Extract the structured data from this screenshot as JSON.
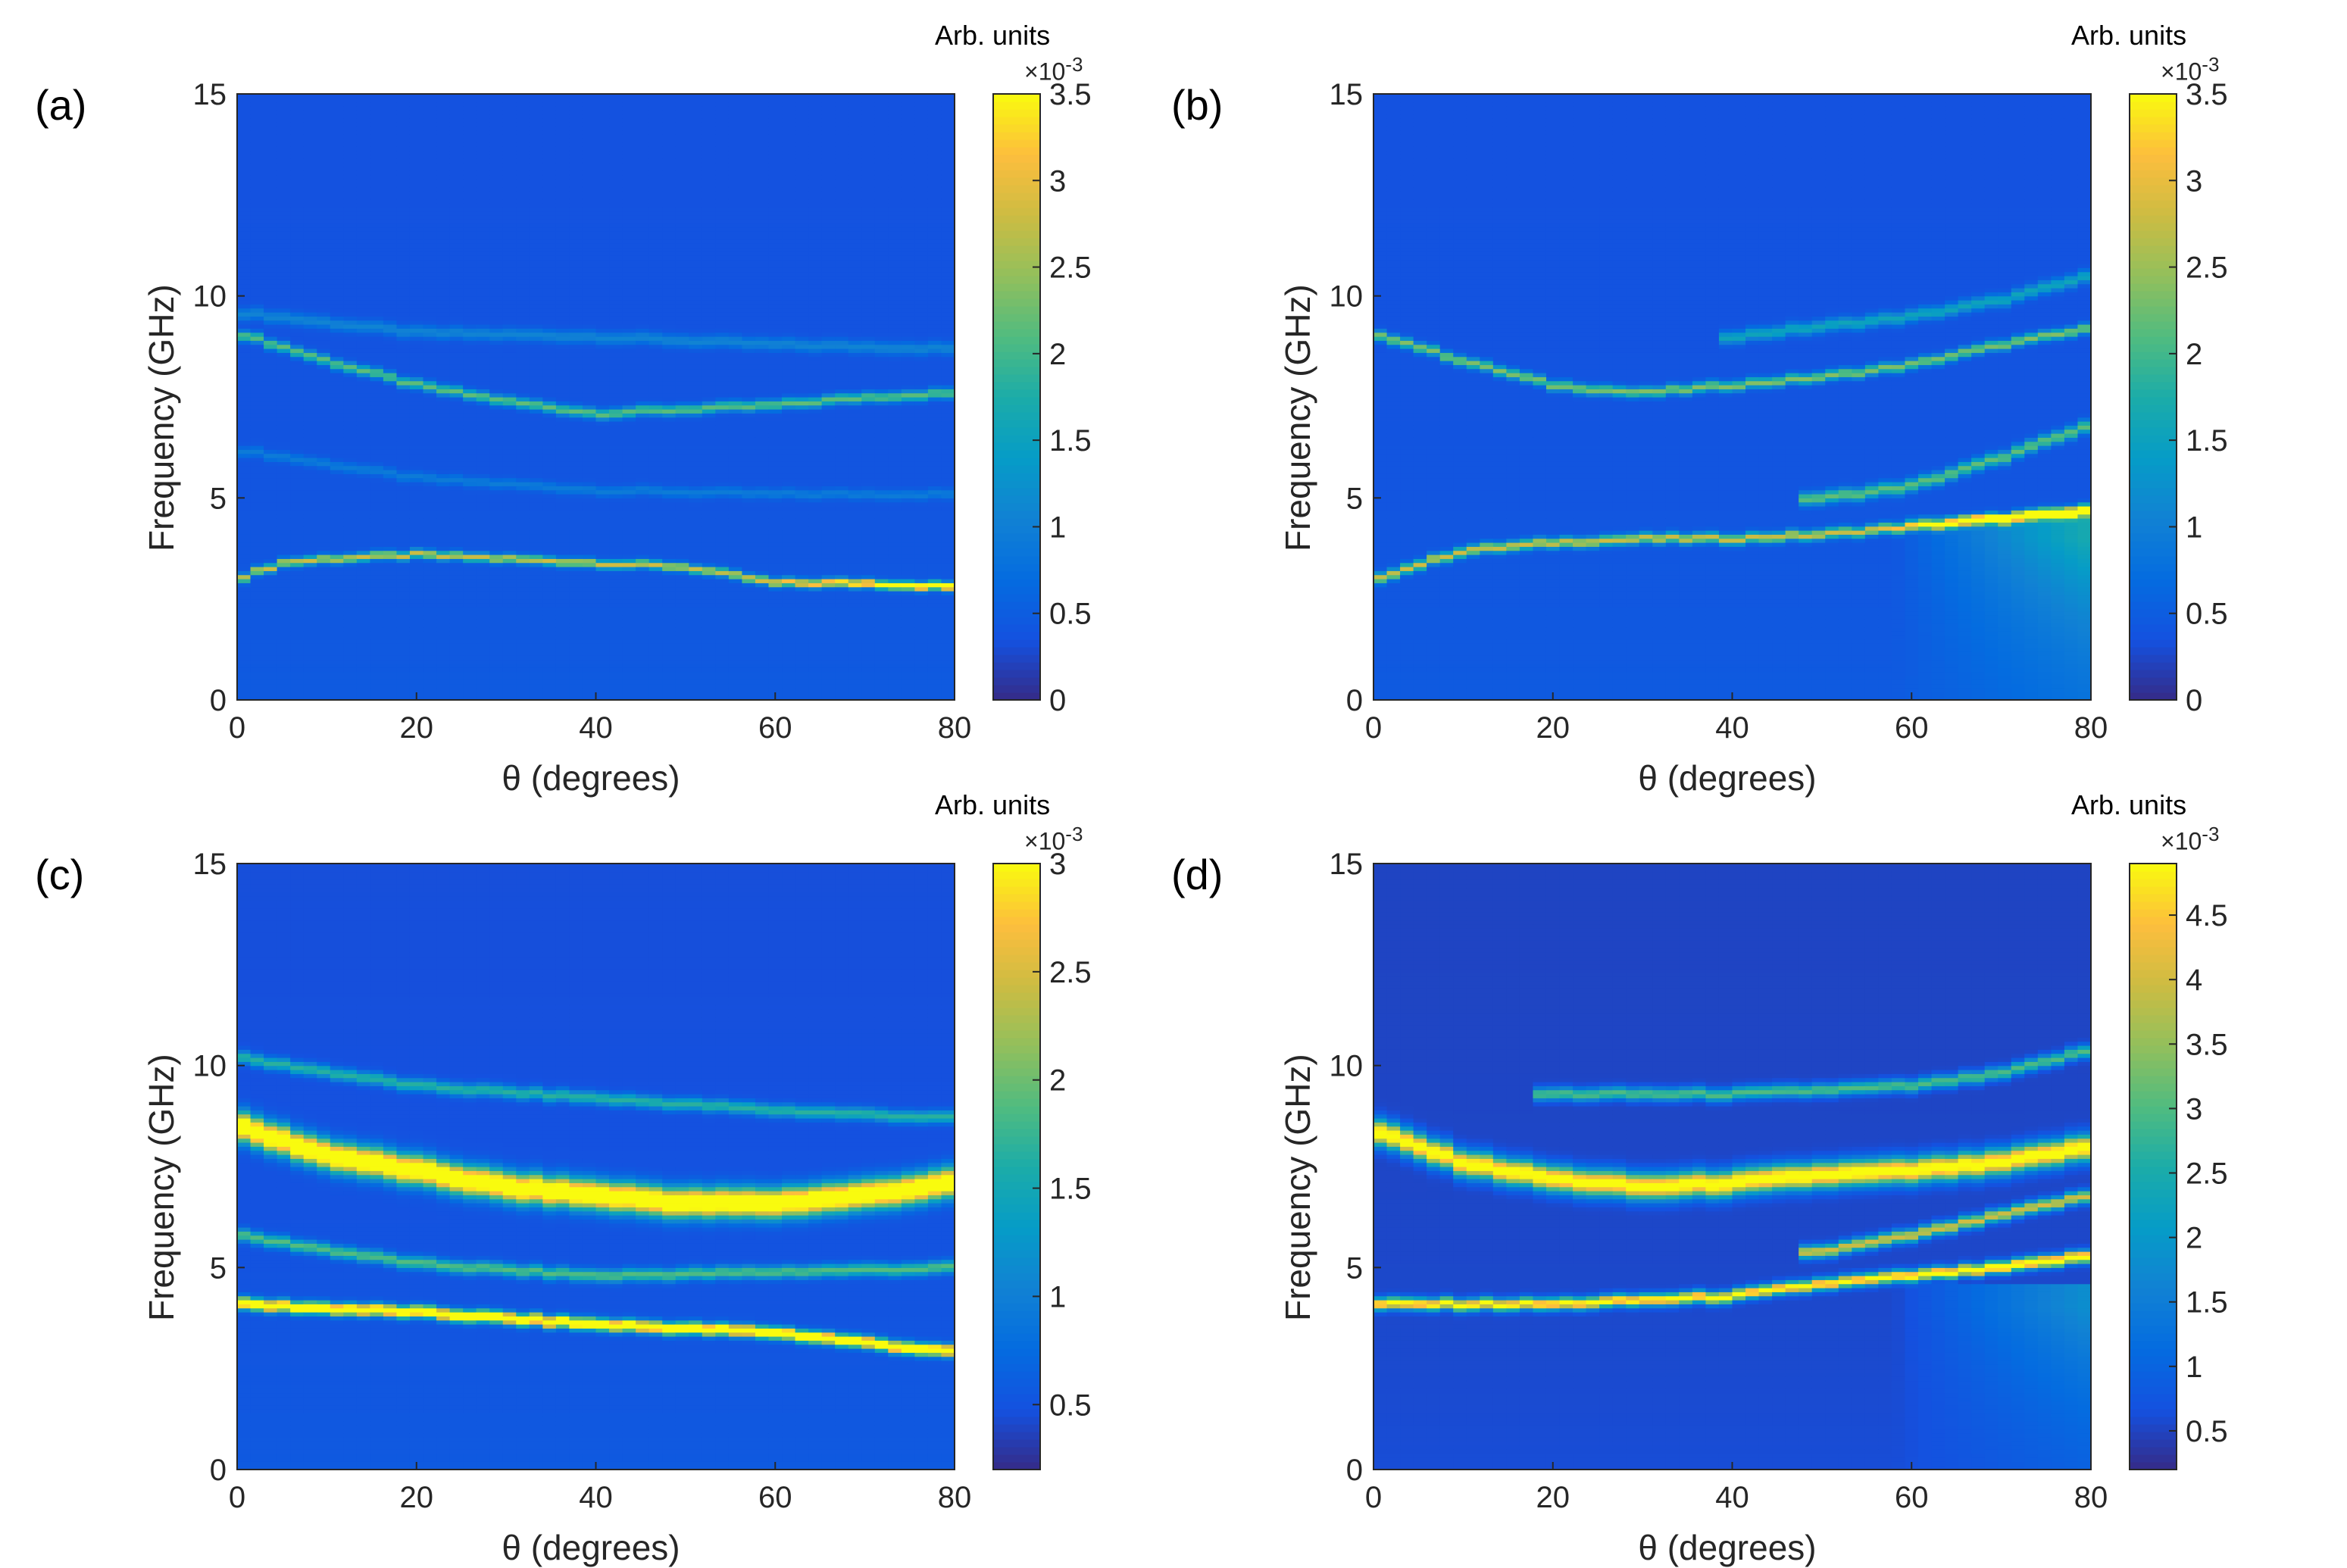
{
  "figure": {
    "panels": [
      {
        "id": "a",
        "label": "(a)",
        "xlabel": "θ (degrees)",
        "ylabel": "Frequency (GHz)",
        "colorbar": {
          "title": "Arb. units",
          "exponent": "-3",
          "multiplier_prefix": "×10",
          "ticks": [
            "0",
            "0.5",
            "1",
            "1.5",
            "2",
            "2.5",
            "3",
            "3.5"
          ]
        }
      },
      {
        "id": "b",
        "label": "(b)",
        "xlabel": "θ (degrees)",
        "ylabel": "Frequency (GHz)",
        "colorbar": {
          "title": "Arb. units",
          "exponent": "-3",
          "multiplier_prefix": "×10",
          "ticks": [
            "0",
            "0.5",
            "1",
            "1.5",
            "2",
            "2.5",
            "3",
            "3.5"
          ]
        }
      },
      {
        "id": "c",
        "label": "(c)",
        "xlabel": "θ (degrees)",
        "ylabel": "Frequency (GHz)",
        "colorbar": {
          "title": "Arb. units",
          "exponent": "-3",
          "multiplier_prefix": "×10",
          "ticks": [
            "0.5",
            "1",
            "1.5",
            "2",
            "2.5",
            "3"
          ]
        }
      },
      {
        "id": "d",
        "label": "(d)",
        "xlabel": "θ (degrees)",
        "ylabel": "Frequency (GHz)",
        "colorbar": {
          "title": "Arb. units",
          "exponent": "-3",
          "multiplier_prefix": "×10",
          "ticks": [
            "0.5",
            "1",
            "1.5",
            "2",
            "2.5",
            "3",
            "3.5",
            "4",
            "4.5"
          ]
        }
      }
    ]
  },
  "chart_data": [
    {
      "type": "heatmap",
      "title": "(a)",
      "xlabel": "θ (degrees)",
      "ylabel": "Frequency (GHz)",
      "xlim": [
        0,
        80
      ],
      "ylim": [
        0,
        15
      ],
      "xticks": [
        "0",
        "20",
        "40",
        "60",
        "80"
      ],
      "yticks": [
        "0",
        "5",
        "10",
        "15"
      ],
      "colormap": "parula",
      "clim": [
        0,
        3.5
      ],
      "colorbar_label": "Arb. units (×10^-3)",
      "background_level": 0.35,
      "modes": [
        {
          "name": "lower",
          "theta": [
            0,
            5,
            10,
            20,
            30,
            40,
            50,
            55,
            60,
            70,
            80
          ],
          "freq": [
            3.0,
            3.4,
            3.5,
            3.6,
            3.5,
            3.4,
            3.3,
            3.1,
            2.9,
            2.9,
            2.8
          ],
          "width": 0.1,
          "peak": 2.4,
          "rise_at": 55,
          "rise_peak": 3.6
        },
        {
          "name": "upper",
          "theta": [
            0,
            10,
            20,
            30,
            40,
            50,
            60,
            70,
            80
          ],
          "freq": [
            9.1,
            8.4,
            7.8,
            7.4,
            7.1,
            7.2,
            7.3,
            7.5,
            7.6
          ],
          "width": 0.12,
          "peak": 1.8
        },
        {
          "name": "mid",
          "theta": [
            0,
            20,
            40,
            60,
            80
          ],
          "freq": [
            6.2,
            5.5,
            5.2,
            5.1,
            5.1
          ],
          "width": 0.12,
          "peak": 0.55
        },
        {
          "name": "high",
          "theta": [
            0,
            20,
            40,
            60,
            80
          ],
          "freq": [
            9.6,
            9.1,
            9.0,
            8.8,
            8.7
          ],
          "width": 0.15,
          "peak": 0.7
        }
      ]
    },
    {
      "type": "heatmap",
      "title": "(b)",
      "xlabel": "θ (degrees)",
      "ylabel": "Frequency (GHz)",
      "xlim": [
        0,
        80
      ],
      "ylim": [
        0,
        15
      ],
      "xticks": [
        "0",
        "20",
        "40",
        "60",
        "80"
      ],
      "yticks": [
        "0",
        "5",
        "10",
        "15"
      ],
      "colormap": "parula",
      "clim": [
        0,
        3.5
      ],
      "colorbar_label": "Arb. units (×10^-3)",
      "background_level": 0.35,
      "modes": [
        {
          "name": "lower",
          "theta": [
            0,
            10,
            20,
            30,
            40,
            50,
            60,
            70,
            80
          ],
          "freq": [
            3.0,
            3.7,
            3.9,
            4.0,
            4.0,
            4.1,
            4.3,
            4.5,
            4.7
          ],
          "width": 0.12,
          "peak": 2.4,
          "rise_at": 55,
          "rise_peak": 4.2
        },
        {
          "name": "upper",
          "theta": [
            0,
            10,
            20,
            30,
            40,
            50,
            60,
            70,
            80
          ],
          "freq": [
            9.1,
            8.4,
            7.8,
            7.6,
            7.8,
            8.0,
            8.3,
            8.8,
            9.2
          ],
          "width": 0.12,
          "peak": 2.0
        },
        {
          "name": "branch",
          "theta": [
            50,
            60,
            70,
            80
          ],
          "freq": [
            5.0,
            5.3,
            6.0,
            6.8
          ],
          "width": 0.15,
          "peak": 1.8
        },
        {
          "name": "high",
          "theta": [
            40,
            60,
            70,
            80
          ],
          "freq": [
            9.0,
            9.5,
            9.9,
            10.5
          ],
          "width": 0.15,
          "peak": 1.2
        }
      ]
    },
    {
      "type": "heatmap",
      "title": "(c)",
      "xlabel": "θ (degrees)",
      "ylabel": "Frequency (GHz)",
      "xlim": [
        0,
        80
      ],
      "ylim": [
        0,
        15
      ],
      "xticks": [
        "0",
        "20",
        "40",
        "60",
        "80"
      ],
      "yticks": [
        "0",
        "5",
        "10",
        "15"
      ],
      "colormap": "parula",
      "clim": [
        0.2,
        3.0
      ],
      "colorbar_label": "Arb. units (×10^-3)",
      "background_level": 0.45,
      "modes": [
        {
          "name": "lower",
          "theta": [
            0,
            20,
            40,
            60,
            80
          ],
          "freq": [
            4.1,
            3.9,
            3.6,
            3.4,
            2.9
          ],
          "width": 0.14,
          "peak": 3.2
        },
        {
          "name": "upper",
          "theta": [
            0,
            10,
            20,
            30,
            40,
            50,
            60,
            70,
            80
          ],
          "freq": [
            8.5,
            7.8,
            7.4,
            7.0,
            6.8,
            6.6,
            6.6,
            6.8,
            7.1
          ],
          "width": 0.35,
          "peak": 3.2
        },
        {
          "name": "mid",
          "theta": [
            0,
            20,
            40,
            60,
            80
          ],
          "freq": [
            5.8,
            5.1,
            4.8,
            4.9,
            5.0
          ],
          "width": 0.15,
          "peak": 1.4
        },
        {
          "name": "high",
          "theta": [
            0,
            20,
            40,
            60,
            80
          ],
          "freq": [
            10.2,
            9.5,
            9.2,
            8.9,
            8.7
          ],
          "width": 0.15,
          "peak": 1.2
        }
      ]
    },
    {
      "type": "heatmap",
      "title": "(d)",
      "xlabel": "θ (degrees)",
      "ylabel": "Frequency (GHz)",
      "xlim": [
        0,
        80
      ],
      "ylim": [
        0,
        15
      ],
      "xticks": [
        "0",
        "20",
        "40",
        "60",
        "80"
      ],
      "yticks": [
        "0",
        "5",
        "10",
        "15"
      ],
      "colormap": "parula",
      "clim": [
        0.2,
        4.9
      ],
      "colorbar_label": "Arb. units (×10^-3)",
      "background_level": 0.5,
      "modes": [
        {
          "name": "lower",
          "theta": [
            0,
            20,
            40,
            50,
            60,
            70,
            80
          ],
          "freq": [
            4.1,
            4.1,
            4.3,
            4.6,
            4.8,
            5.0,
            5.3
          ],
          "width": 0.14,
          "peak": 4.5,
          "rise_at": 55,
          "rise_peak": 5.2
        },
        {
          "name": "upper",
          "theta": [
            0,
            10,
            20,
            30,
            40,
            50,
            60,
            70,
            80
          ],
          "freq": [
            8.4,
            7.6,
            7.2,
            7.0,
            7.1,
            7.3,
            7.4,
            7.6,
            8.0
          ],
          "width": 0.3,
          "peak": 4.8
        },
        {
          "name": "branch",
          "theta": [
            50,
            60,
            70,
            80
          ],
          "freq": [
            5.4,
            5.8,
            6.3,
            6.8
          ],
          "width": 0.15,
          "peak": 3.5
        },
        {
          "name": "high",
          "theta": [
            20,
            40,
            60,
            70,
            80
          ],
          "freq": [
            9.3,
            9.3,
            9.5,
            9.8,
            10.4
          ],
          "width": 0.15,
          "peak": 2.5
        }
      ]
    }
  ]
}
